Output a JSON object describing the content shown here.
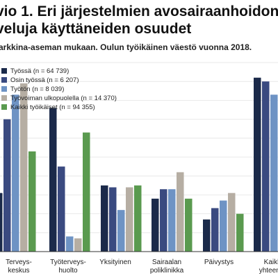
{
  "chart_data": {
    "type": "bar",
    "title": "vio 1. Eri järjestelmien avosairaanhoidon\nveluja käyttäneiden osuudet",
    "subtitle": "arkkina-aseman mukaan. Oulun työikäinen väestö vuonna 2018.",
    "categories": [
      "Terveys-\nkeskus",
      "Työterveys-\nhuolto",
      "Yksityinen",
      "Sairaalan\npoliklinikka",
      "Päivystys",
      "Kaikki\nyhteensä"
    ],
    "ylim": [
      0,
      100
    ],
    "grid": true,
    "legend_position": "top-left",
    "series": [
      {
        "name": "Työssä (n = 64 739)",
        "color": "#1b2a4a",
        "values": [
          31,
          76,
          35,
          28,
          17,
          92
        ]
      },
      {
        "name": "Osin työssä (n = 6 207)",
        "color": "#3a4a80",
        "values": [
          70,
          45,
          34,
          33,
          23,
          90
        ]
      },
      {
        "name": "Työtön (n = 8 039)",
        "color": "#6e93c4",
        "values": [
          83,
          8,
          22,
          33,
          27,
          83
        ]
      },
      {
        "name": "Työvoiman ulkopuolella (n = 14 370)",
        "color": "#b6aea3",
        "values": [
          89,
          7,
          34,
          42,
          31,
          79
        ]
      },
      {
        "name": "Kaikki työikäiset (n = 94 355)",
        "color": "#5a9a4f",
        "values": [
          53,
          63,
          35,
          28,
          20,
          88
        ]
      }
    ]
  }
}
